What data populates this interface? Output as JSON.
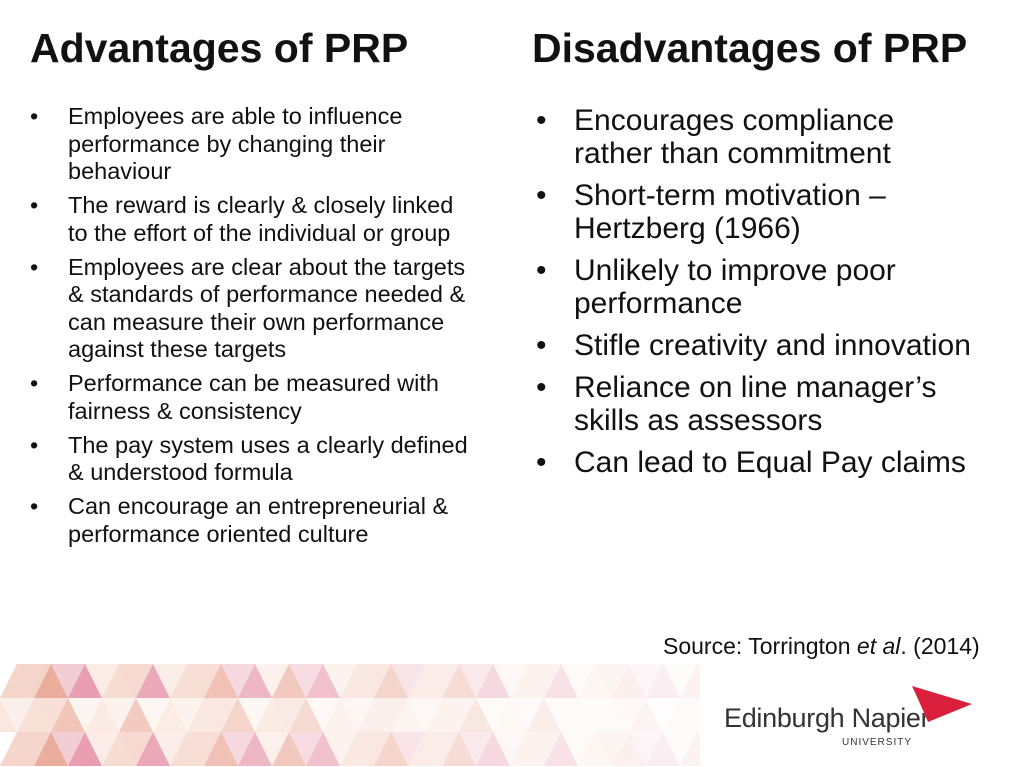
{
  "advantages": {
    "title": "Advantages of PRP",
    "items": [
      "Employees are able to influence performance by changing their behaviour",
      "The reward is clearly & closely linked to the effort of the individual or group",
      "Employees are clear about the targets & standards of performance needed & can measure their own performance against these targets",
      "Performance can be measured with fairness & consistency",
      "The pay system uses a clearly defined & understood formula",
      "Can encourage an entrepreneurial & performance oriented culture"
    ]
  },
  "disadvantages": {
    "title": "Disadvantages of PRP",
    "items": [
      "Encourages compliance rather than commitment",
      "Short-term motivation – Hertzberg (1966)",
      "Unlikely to improve poor performance",
      "Stifle creativity and innovation",
      "Reliance on line manager’s skills as assessors",
      "Can lead to Equal Pay claims"
    ]
  },
  "source": {
    "prefix": "Source: Torrington ",
    "emphasis": "et al",
    "suffix": ". (2014)"
  },
  "logo": {
    "name": "Edinburgh Napier",
    "sub": "UNIVERSITY",
    "brand_color": "#d91f3c"
  },
  "bullet_char": "•",
  "pattern_colors": [
    "#f5d2c4",
    "#eeb8a8",
    "#e8a08c",
    "#fae6dc",
    "#e48aa0",
    "#f7ddd2"
  ]
}
